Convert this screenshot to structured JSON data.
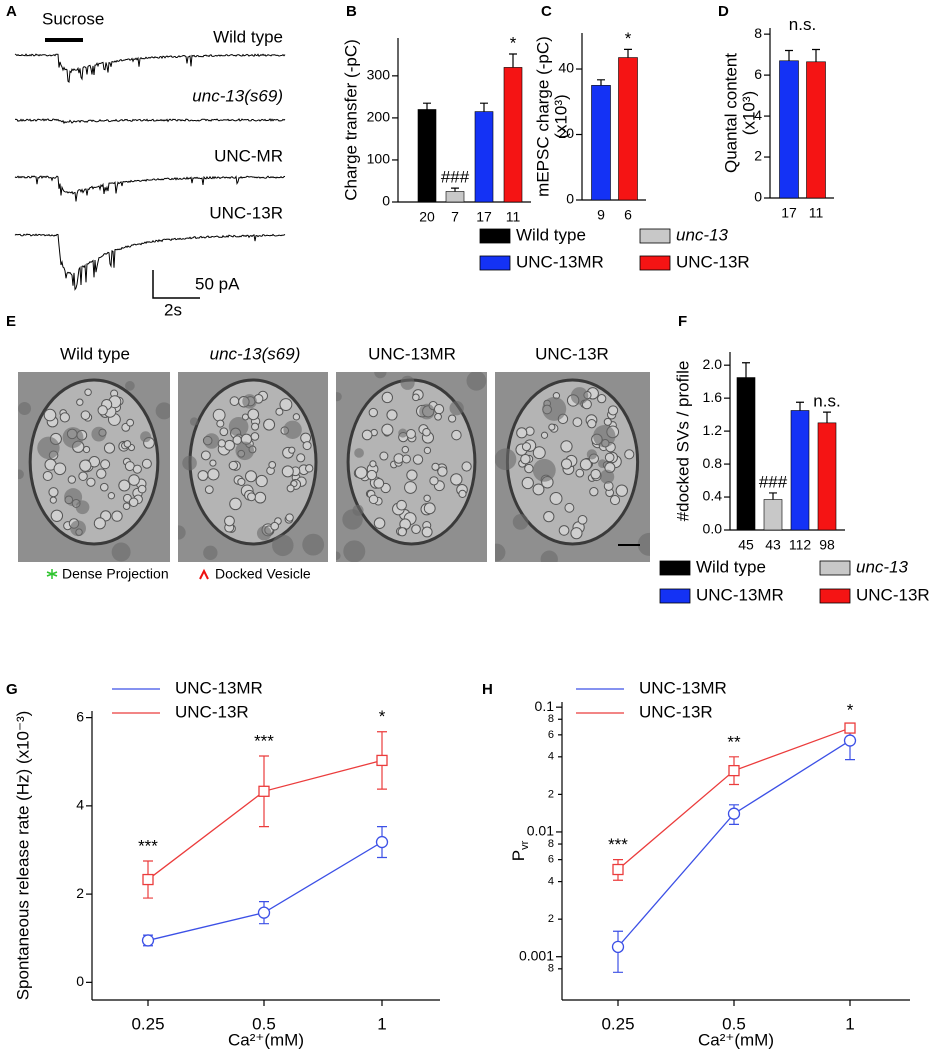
{
  "panel_letters": [
    "A",
    "B",
    "C",
    "D",
    "E",
    "F",
    "G",
    "H"
  ],
  "panel_a": {
    "stimulus": "Sucrose",
    "traces": [
      "Wild type",
      "unc-13(s69)",
      "UNC-MR",
      "UNC-13R"
    ],
    "scale_y": "50 pA",
    "scale_x": "2s"
  },
  "panel_e": {
    "images": [
      "Wild type",
      "unc-13(s69)",
      "UNC-13MR",
      "UNC-13R"
    ],
    "legend": [
      "Dense Projection",
      "Docked Vesicle"
    ]
  },
  "legends": [
    [
      {
        "label": "Wild type",
        "color": "#000000"
      },
      {
        "label": "unc-13",
        "color": "#c8c8c8"
      },
      {
        "label": "UNC-13MR",
        "color": "#1432f5"
      },
      {
        "label": "UNC-13R",
        "color": "#f51414"
      }
    ],
    [
      {
        "label": "Wild type",
        "color": "#000000"
      },
      {
        "label": "unc-13",
        "color": "#c8c8c8"
      },
      {
        "label": "UNC-13MR",
        "color": "#1432f5"
      },
      {
        "label": "UNC-13R",
        "color": "#f51414"
      }
    ]
  ],
  "chart_data": [
    {
      "type": "bar",
      "ylabel": "Charge transfer (-pC)",
      "categories": [
        "20",
        "7",
        "17",
        "11"
      ],
      "values": [
        220,
        25,
        215,
        320
      ],
      "errors": [
        15,
        8,
        20,
        32
      ],
      "colors": [
        "#000000",
        "#c8c8c8",
        "#1432f5",
        "#f51414"
      ],
      "annotations": [
        null,
        "###",
        null,
        "*"
      ],
      "ylim": [
        0,
        390
      ],
      "yticks": [
        0,
        100,
        200,
        300
      ]
    },
    {
      "type": "bar",
      "ylabel": "mEPSC charge (-pC)",
      "ylabel2": "(x10³)",
      "categories": [
        "9",
        "6"
      ],
      "values": [
        35,
        43.5
      ],
      "errors": [
        1.7,
        2.5
      ],
      "colors": [
        "#1432f5",
        "#f51414"
      ],
      "annotations": [
        null,
        "*"
      ],
      "ylim": [
        0,
        51
      ],
      "yticks": [
        0,
        20,
        40
      ]
    },
    {
      "type": "bar",
      "ylabel": "Quantal content",
      "ylabel2": "(x10³)",
      "categories": [
        "17",
        "11"
      ],
      "values": [
        6.7,
        6.65
      ],
      "errors": [
        0.5,
        0.6
      ],
      "colors": [
        "#1432f5",
        "#f51414"
      ],
      "annotation": "n.s.",
      "ylim": [
        0,
        8.3
      ],
      "yticks": [
        0,
        2,
        4,
        6,
        8
      ]
    },
    {
      "type": "bar",
      "ylabel": "#docked SVs / profile",
      "categories": [
        "45",
        "43",
        "112",
        "98"
      ],
      "values": [
        1.85,
        0.37,
        1.45,
        1.3
      ],
      "errors": [
        0.18,
        0.08,
        0.1,
        0.13
      ],
      "colors": [
        "#000000",
        "#c8c8c8",
        "#1432f5",
        "#f51414"
      ],
      "annotations": [
        null,
        "###",
        null,
        "n.s."
      ],
      "ylim": [
        0,
        2.16
      ],
      "yticks": [
        {
          "value": 0,
          "label": "0.0"
        },
        0.4,
        0.8,
        1.2,
        1.6,
        {
          "value": 2,
          "label": "2.0"
        }
      ]
    },
    {
      "type": "line",
      "ylabel": "Spontaneous release rate (Hz) (x10⁻³)",
      "xlabel": "Ca²⁺(mM)",
      "categories": [
        "0.25",
        "0.5",
        "1"
      ],
      "series": [
        {
          "name": "UNC-13MR",
          "color": "#3c50e6",
          "marker": "circle",
          "values": [
            0.95,
            1.58,
            3.18
          ],
          "errors": [
            0.12,
            0.25,
            0.35
          ]
        },
        {
          "name": "UNC-13R",
          "color": "#eb3c3c",
          "marker": "square",
          "values": [
            2.33,
            4.33,
            5.03
          ],
          "errors": [
            0.42,
            0.8,
            0.65
          ]
        }
      ],
      "annotations": [
        "***",
        "***",
        "*"
      ],
      "legend": "top-left",
      "ylim": [
        -0.4,
        6.15
      ],
      "yticks": [
        0,
        2,
        4,
        6
      ]
    },
    {
      "type": "line",
      "log_y": true,
      "ylabel": "P",
      "ylabel_sub": "vr",
      "xlabel": "Ca²⁺(mM)",
      "categories": [
        "0.25",
        "0.5",
        "1"
      ],
      "series": [
        {
          "name": "UNC-13MR",
          "color": "#3c50e6",
          "marker": "circle",
          "values": [
            0.0012,
            0.014,
            0.054
          ],
          "lower": [
            0.00075,
            0.0115,
            0.038
          ],
          "upper": [
            0.0016,
            0.0165,
            0.063
          ]
        },
        {
          "name": "UNC-13R",
          "color": "#eb3c3c",
          "marker": "square",
          "values": [
            0.005,
            0.031,
            0.068
          ],
          "lower": [
            0.0041,
            0.024,
            0.063
          ],
          "upper": [
            0.006,
            0.04,
            0.072
          ]
        }
      ],
      "annotations": [
        "***",
        "**",
        "*"
      ],
      "legend": "top-left",
      "ylim": [
        0.00045,
        0.11
      ],
      "yticks": [
        {
          "value": 0.0008,
          "label": "8"
        },
        0.001,
        {
          "value": 0.002,
          "label": "2"
        },
        {
          "value": 0.004,
          "label": "4"
        },
        {
          "value": 0.006,
          "label": "6"
        },
        {
          "value": 0.008,
          "label": "8"
        },
        0.01,
        {
          "value": 0.02,
          "label": "2"
        },
        {
          "value": 0.04,
          "label": "4"
        },
        {
          "value": 0.06,
          "label": "6"
        },
        {
          "value": 0.08,
          "label": "8"
        },
        0.1
      ]
    }
  ]
}
